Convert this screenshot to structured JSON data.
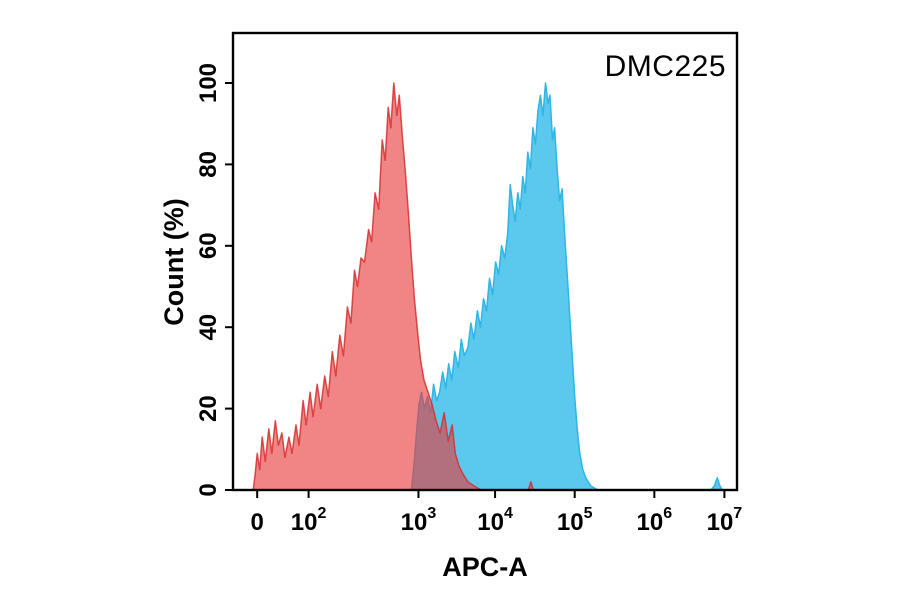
{
  "annotation": "DMC225",
  "chart_data": {
    "type": "area",
    "subtype": "flow-cytometry-overlay-histogram",
    "title": "DMC225",
    "xlabel": "APC-A",
    "ylabel": "Count (%)",
    "x_scale": "logicle",
    "grid": false,
    "legend": "none",
    "ylim": [
      0,
      112
    ],
    "y_ticks": [
      {
        "value": 0,
        "label": "0"
      },
      {
        "value": 20,
        "label": "20"
      },
      {
        "value": 40,
        "label": "40"
      },
      {
        "value": 60,
        "label": "60"
      },
      {
        "value": 80,
        "label": "80"
      },
      {
        "value": 100,
        "label": "100"
      }
    ],
    "x_ticks": [
      {
        "base": "0",
        "exp": "",
        "frac": 0.048
      },
      {
        "base": "10",
        "exp": "2",
        "frac": 0.15
      },
      {
        "base": "10",
        "exp": "3",
        "frac": 0.368
      },
      {
        "base": "10",
        "exp": "4",
        "frac": 0.52
      },
      {
        "base": "10",
        "exp": "5",
        "frac": 0.678
      },
      {
        "base": "10",
        "exp": "6",
        "frac": 0.836
      },
      {
        "base": "10",
        "exp": "7",
        "frac": 0.975
      }
    ],
    "series": [
      {
        "name": "blue-histogram",
        "color": "#4cc4ec",
        "stroke": "#30b5e4",
        "fill_opacity": 0.92,
        "stroke_opacity": 1,
        "peak_percent": 100,
        "paths": [
          [
            [
              0.354,
              0
            ],
            [
              0.359,
              6
            ],
            [
              0.364,
              14
            ],
            [
              0.369,
              21
            ],
            [
              0.374,
              24
            ],
            [
              0.38,
              20
            ],
            [
              0.386,
              23
            ],
            [
              0.392,
              19
            ],
            [
              0.398,
              26
            ],
            [
              0.404,
              22
            ],
            [
              0.41,
              24
            ],
            [
              0.416,
              29
            ],
            [
              0.422,
              25
            ],
            [
              0.428,
              31
            ],
            [
              0.434,
              27
            ],
            [
              0.44,
              34
            ],
            [
              0.447,
              30
            ],
            [
              0.453,
              37
            ],
            [
              0.459,
              33
            ],
            [
              0.466,
              35
            ],
            [
              0.472,
              41
            ],
            [
              0.478,
              37
            ],
            [
              0.485,
              44
            ],
            [
              0.491,
              40
            ],
            [
              0.497,
              47
            ],
            [
              0.503,
              44
            ],
            [
              0.509,
              52
            ],
            [
              0.515,
              48
            ],
            [
              0.521,
              56
            ],
            [
              0.527,
              53
            ],
            [
              0.533,
              60
            ],
            [
              0.539,
              57
            ],
            [
              0.545,
              63
            ],
            [
              0.55,
              75
            ],
            [
              0.555,
              70
            ],
            [
              0.56,
              66
            ],
            [
              0.565,
              73
            ],
            [
              0.57,
              69
            ],
            [
              0.575,
              77
            ],
            [
              0.58,
              73
            ],
            [
              0.585,
              83
            ],
            [
              0.59,
              79
            ],
            [
              0.595,
              89
            ],
            [
              0.6,
              85
            ],
            [
              0.605,
              93
            ],
            [
              0.61,
              97
            ],
            [
              0.615,
              92
            ],
            [
              0.62,
              100
            ],
            [
              0.625,
              95
            ],
            [
              0.629,
              97
            ],
            [
              0.634,
              86
            ],
            [
              0.638,
              89
            ],
            [
              0.643,
              79
            ],
            [
              0.648,
              71
            ],
            [
              0.653,
              74
            ],
            [
              0.658,
              63
            ],
            [
              0.663,
              53
            ],
            [
              0.668,
              43
            ],
            [
              0.673,
              33
            ],
            [
              0.678,
              23
            ],
            [
              0.683,
              15
            ],
            [
              0.688,
              9
            ],
            [
              0.694,
              5
            ],
            [
              0.7,
              3
            ],
            [
              0.71,
              1
            ],
            [
              0.724,
              0
            ]
          ],
          [
            [
              0.948,
              0
            ],
            [
              0.955,
              1
            ],
            [
              0.961,
              3
            ],
            [
              0.966,
              1
            ],
            [
              0.971,
              0
            ]
          ]
        ]
      },
      {
        "name": "red-histogram",
        "color": "#e83a3a",
        "stroke": "#d42f2f",
        "fill_opacity": 0.62,
        "stroke_opacity": 0.85,
        "peak_percent": 100,
        "paths": [
          [
            [
              0.04,
              0
            ],
            [
              0.044,
              4
            ],
            [
              0.048,
              9
            ],
            [
              0.053,
              5
            ],
            [
              0.058,
              13
            ],
            [
              0.064,
              7
            ],
            [
              0.071,
              15
            ],
            [
              0.077,
              9
            ],
            [
              0.084,
              17
            ],
            [
              0.09,
              11
            ],
            [
              0.097,
              14
            ],
            [
              0.103,
              8
            ],
            [
              0.111,
              13
            ],
            [
              0.117,
              9
            ],
            [
              0.125,
              16
            ],
            [
              0.131,
              11
            ],
            [
              0.139,
              22
            ],
            [
              0.145,
              16
            ],
            [
              0.153,
              24
            ],
            [
              0.159,
              18
            ],
            [
              0.167,
              26
            ],
            [
              0.174,
              20
            ],
            [
              0.182,
              28
            ],
            [
              0.189,
              23
            ],
            [
              0.197,
              34
            ],
            [
              0.204,
              28
            ],
            [
              0.212,
              38
            ],
            [
              0.219,
              33
            ],
            [
              0.227,
              45
            ],
            [
              0.234,
              41
            ],
            [
              0.241,
              54
            ],
            [
              0.247,
              50
            ],
            [
              0.254,
              57
            ],
            [
              0.261,
              56
            ],
            [
              0.269,
              64
            ],
            [
              0.275,
              61
            ],
            [
              0.282,
              73
            ],
            [
              0.289,
              69
            ],
            [
              0.296,
              86
            ],
            [
              0.302,
              81
            ],
            [
              0.308,
              94
            ],
            [
              0.313,
              89
            ],
            [
              0.319,
              100
            ],
            [
              0.325,
              92
            ],
            [
              0.33,
              97
            ],
            [
              0.336,
              87
            ],
            [
              0.342,
              78
            ],
            [
              0.348,
              68
            ],
            [
              0.354,
              57
            ],
            [
              0.36,
              47
            ],
            [
              0.366,
              39
            ],
            [
              0.372,
              32
            ],
            [
              0.379,
              27
            ],
            [
              0.387,
              24
            ],
            [
              0.395,
              21
            ],
            [
              0.403,
              17
            ],
            [
              0.411,
              14
            ],
            [
              0.419,
              19
            ],
            [
              0.427,
              12
            ],
            [
              0.435,
              16
            ],
            [
              0.441,
              9
            ],
            [
              0.448,
              6
            ],
            [
              0.456,
              4
            ],
            [
              0.466,
              2
            ],
            [
              0.478,
              1
            ],
            [
              0.492,
              0
            ]
          ],
          [
            [
              0.586,
              0
            ],
            [
              0.591,
              2
            ],
            [
              0.596,
              0
            ]
          ]
        ]
      }
    ]
  }
}
